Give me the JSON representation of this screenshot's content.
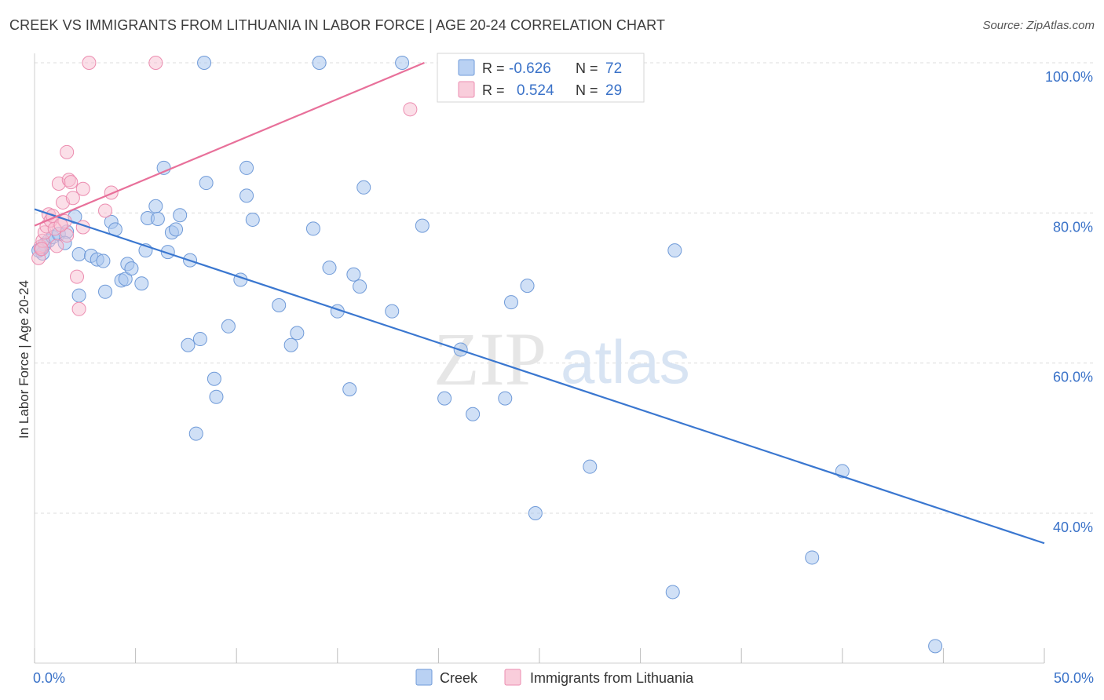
{
  "header": {
    "title": "CREEK VS IMMIGRANTS FROM LITHUANIA IN LABOR FORCE | AGE 20-24 CORRELATION CHART",
    "source": "Source: ZipAtlas.com"
  },
  "watermark": {
    "zip": "ZIP",
    "atlas": "atlas"
  },
  "colors": {
    "creek_fill": "#a9c6ef",
    "creek_stroke": "#6f9ad8",
    "creek_line": "#3a77d0",
    "lith_fill": "#f7c0d1",
    "lith_stroke": "#ec8db0",
    "lith_line": "#e8709a",
    "grid": "#dcdcdc",
    "label_blue": "#3a72c8"
  },
  "legend_box": {
    "rows": [
      {
        "r_label": "R =",
        "r_value": "-0.626",
        "n_label": "N =",
        "n_value": "72"
      },
      {
        "r_label": "R =",
        "r_value": "0.524",
        "n_label": "N =",
        "n_value": "29"
      }
    ]
  },
  "bottom_legend": {
    "items": [
      "Creek",
      "Immigrants from Lithuania"
    ]
  },
  "chart_data": {
    "type": "scatter",
    "title": "CREEK VS IMMIGRANTS FROM LITHUANIA IN LABOR FORCE | AGE 20-24 CORRELATION CHART",
    "xlabel": "",
    "ylabel": "In Labor Force | Age 20-24",
    "xlim": [
      0,
      50
    ],
    "ylim": [
      20,
      102
    ],
    "x_tick_labels": [
      "0.0%",
      "50.0%"
    ],
    "y_ticks": [
      40,
      60,
      80,
      100
    ],
    "y_tick_labels": [
      "40.0%",
      "60.0%",
      "80.0%",
      "100.0%"
    ],
    "grid": true,
    "series": [
      {
        "name": "Creek",
        "r": -0.626,
        "n": 72,
        "trend": {
          "x": [
            0,
            50
          ],
          "y": [
            80.5,
            36.0
          ]
        },
        "points": [
          [
            0.3,
            75.2
          ],
          [
            0.5,
            75.8
          ],
          [
            0.7,
            76.3
          ],
          [
            0.9,
            76.8
          ],
          [
            1.2,
            77.2
          ],
          [
            1.6,
            77.5
          ],
          [
            0.4,
            74.6
          ],
          [
            2.0,
            79.5
          ],
          [
            2.2,
            69.0
          ],
          [
            2.2,
            74.5
          ],
          [
            2.8,
            74.3
          ],
          [
            3.1,
            73.8
          ],
          [
            3.4,
            73.6
          ],
          [
            3.5,
            69.5
          ],
          [
            3.8,
            78.8
          ],
          [
            4.0,
            77.8
          ],
          [
            4.3,
            71.0
          ],
          [
            4.5,
            71.2
          ],
          [
            4.6,
            73.2
          ],
          [
            4.8,
            72.6
          ],
          [
            5.3,
            70.6
          ],
          [
            5.5,
            75.0
          ],
          [
            5.6,
            79.3
          ],
          [
            6.0,
            80.9
          ],
          [
            6.1,
            79.2
          ],
          [
            6.4,
            86.0
          ],
          [
            6.6,
            74.8
          ],
          [
            6.8,
            77.4
          ],
          [
            7.0,
            77.8
          ],
          [
            7.2,
            79.7
          ],
          [
            7.6,
            62.4
          ],
          [
            7.7,
            73.7
          ],
          [
            8.0,
            50.6
          ],
          [
            8.2,
            63.2
          ],
          [
            8.5,
            84.0
          ],
          [
            8.9,
            57.9
          ],
          [
            9.0,
            55.5
          ],
          [
            9.6,
            64.9
          ],
          [
            10.2,
            71.1
          ],
          [
            10.5,
            82.3
          ],
          [
            10.5,
            86.0
          ],
          [
            10.8,
            79.1
          ],
          [
            12.1,
            67.7
          ],
          [
            12.7,
            62.4
          ],
          [
            13.0,
            64.0
          ],
          [
            13.8,
            77.9
          ],
          [
            14.6,
            72.7
          ],
          [
            15.0,
            66.9
          ],
          [
            15.6,
            56.5
          ],
          [
            15.8,
            71.8
          ],
          [
            16.1,
            70.2
          ],
          [
            16.3,
            83.4
          ],
          [
            17.7,
            66.9
          ],
          [
            19.2,
            78.3
          ],
          [
            20.3,
            55.3
          ],
          [
            21.1,
            61.8
          ],
          [
            21.7,
            53.2
          ],
          [
            23.3,
            55.3
          ],
          [
            23.6,
            68.1
          ],
          [
            24.4,
            70.3
          ],
          [
            24.8,
            40.0
          ],
          [
            27.5,
            46.2
          ],
          [
            31.6,
            29.5
          ],
          [
            31.7,
            75.0
          ],
          [
            38.5,
            34.1
          ],
          [
            40.0,
            45.6
          ],
          [
            44.6,
            22.3
          ],
          [
            8.4,
            100.0
          ],
          [
            14.1,
            100.0
          ],
          [
            18.2,
            100.0
          ],
          [
            0.2,
            75.0
          ],
          [
            1.5,
            76.0
          ]
        ]
      },
      {
        "name": "Immigrants from Lithuania",
        "r": 0.524,
        "n": 29,
        "trend": {
          "x": [
            0,
            19.3
          ],
          "y": [
            78.3,
            100.0
          ]
        },
        "points": [
          [
            0.2,
            74.0
          ],
          [
            0.3,
            75.5
          ],
          [
            0.4,
            76.3
          ],
          [
            0.5,
            77.4
          ],
          [
            0.6,
            78.2
          ],
          [
            0.7,
            79.8
          ],
          [
            0.8,
            79.0
          ],
          [
            1.0,
            77.9
          ],
          [
            1.1,
            75.6
          ],
          [
            1.2,
            83.9
          ],
          [
            1.4,
            81.4
          ],
          [
            1.5,
            78.9
          ],
          [
            1.6,
            77.0
          ],
          [
            1.6,
            88.1
          ],
          [
            1.7,
            84.4
          ],
          [
            1.8,
            84.1
          ],
          [
            1.9,
            82.0
          ],
          [
            2.1,
            71.5
          ],
          [
            2.2,
            67.2
          ],
          [
            2.4,
            78.1
          ],
          [
            2.4,
            83.2
          ],
          [
            2.7,
            100.0
          ],
          [
            3.5,
            80.3
          ],
          [
            3.8,
            82.7
          ],
          [
            6.0,
            100.0
          ],
          [
            18.6,
            93.8
          ],
          [
            0.9,
            79.6
          ],
          [
            1.3,
            78.4
          ],
          [
            0.35,
            75.2
          ]
        ]
      }
    ]
  }
}
